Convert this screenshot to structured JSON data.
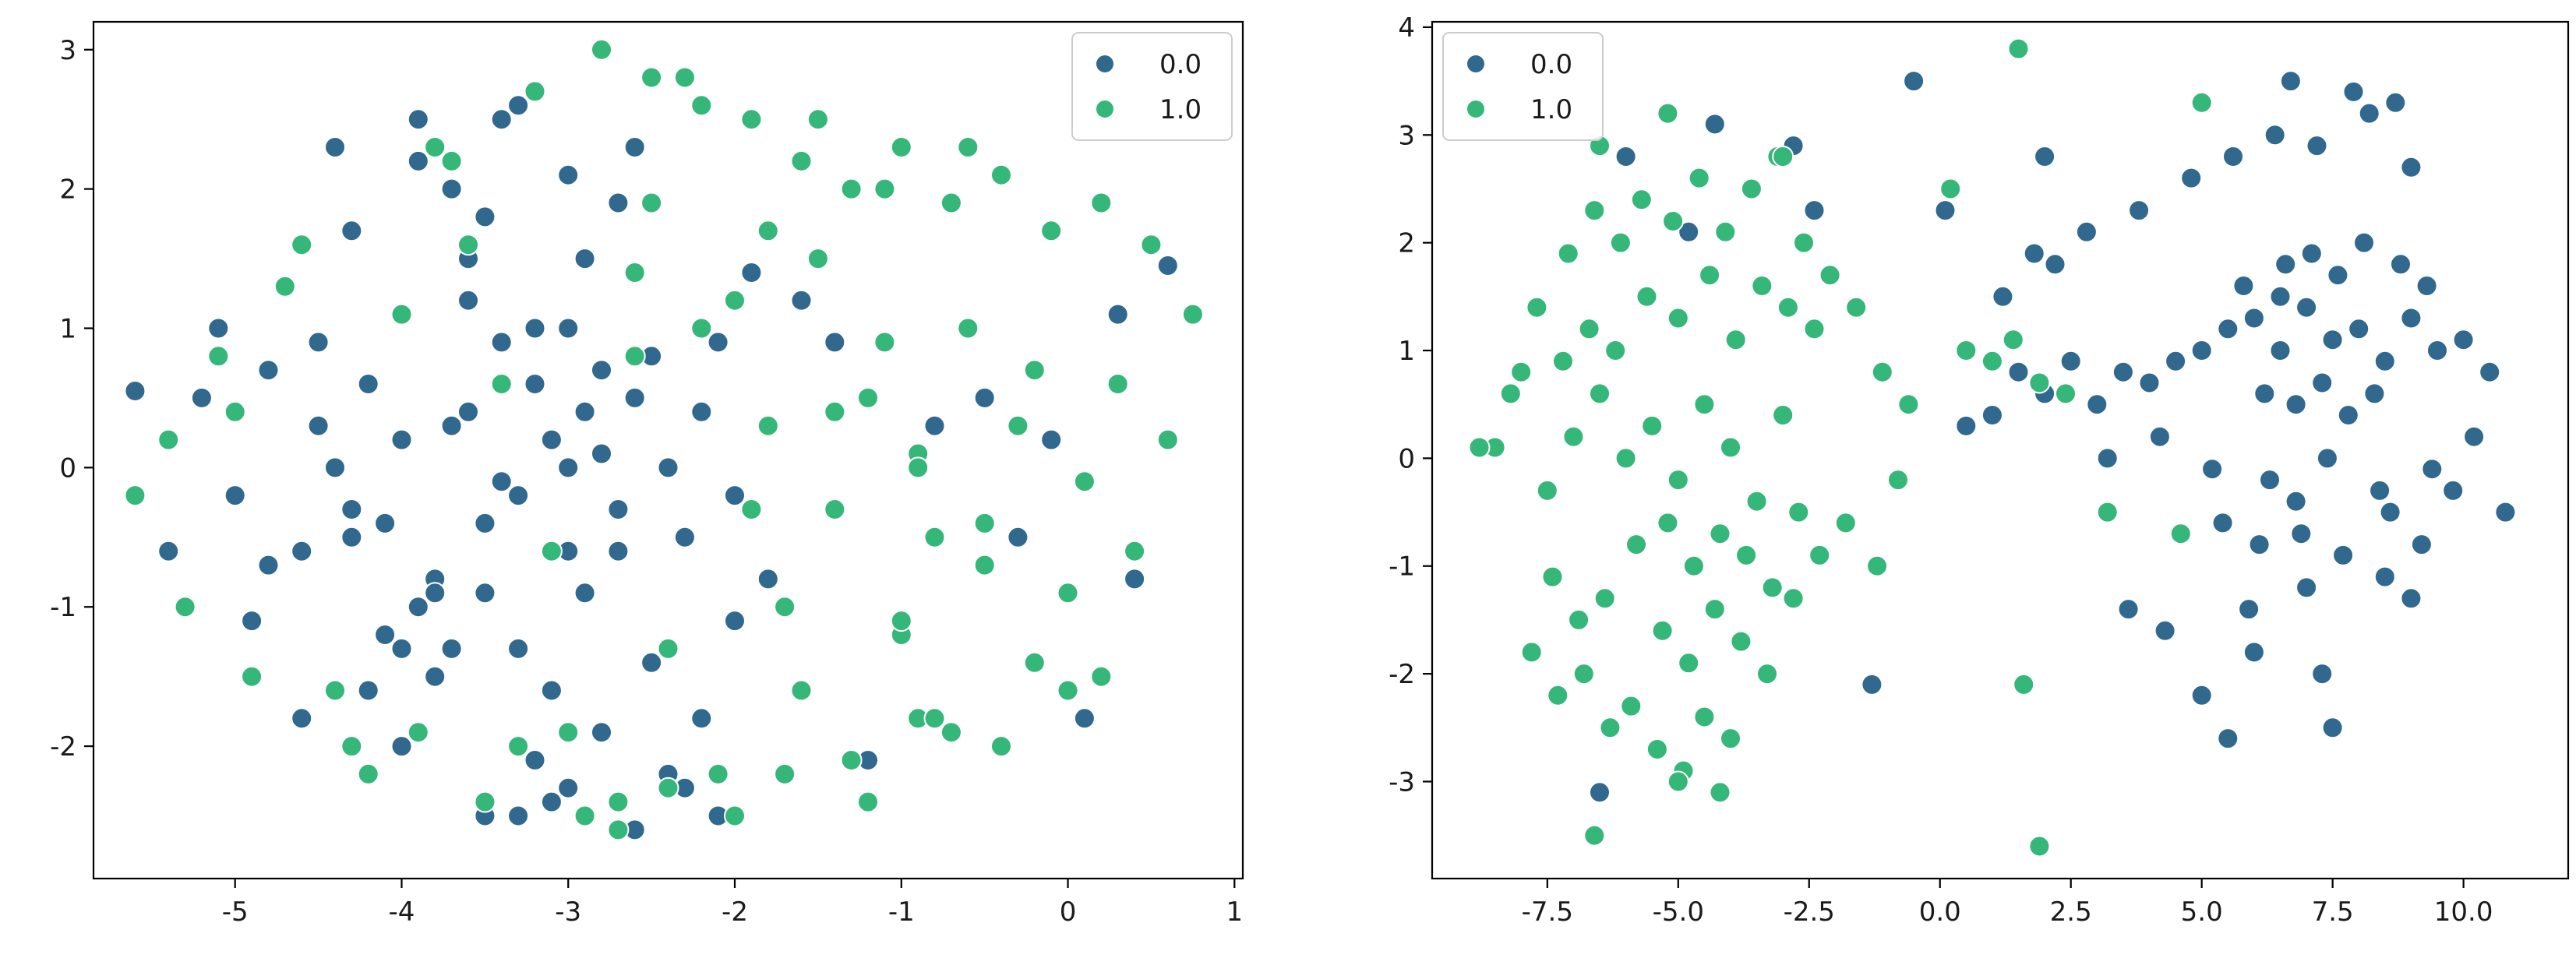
{
  "chart_data": [
    {
      "type": "scatter",
      "title": "",
      "xlabel": "",
      "ylabel": "",
      "xlim": [
        -5.85,
        1.05
      ],
      "ylim": [
        -2.95,
        3.2
      ],
      "xticks": [
        "-5",
        "-4",
        "-3",
        "-2",
        "-1",
        "0",
        "1"
      ],
      "xtick_values": [
        -5,
        -4,
        -3,
        -2,
        -1,
        0,
        1
      ],
      "yticks": [
        "-2",
        "-1",
        "0",
        "1",
        "2",
        "3"
      ],
      "ytick_values": [
        -2,
        -1,
        0,
        1,
        2,
        3
      ],
      "grid": false,
      "legend_position": "top-right",
      "series": [
        {
          "name": "0.0",
          "color": "#31688e",
          "x": [
            -3.1,
            -3.0,
            -2.9,
            -3.3,
            -2.8,
            -3.2,
            -3.5,
            -2.6,
            -3.7,
            -2.4,
            -3.0,
            -3.4,
            -2.7,
            -3.8,
            -2.5,
            -3.6,
            -4.0,
            -2.3,
            -3.9,
            -4.2,
            -2.2,
            -3.3,
            -2.9,
            -3.1,
            -4.4,
            -3.5,
            -2.8,
            -4.1,
            -3.0,
            -2.1,
            -3.7,
            -4.3,
            -3.2,
            -2.6,
            -4.5,
            -3.8,
            -2.0,
            -3.4,
            -4.6,
            -2.4,
            -3.6,
            -4.8,
            -3.9,
            -2.7,
            -5.0,
            -4.0,
            -3.3,
            -1.8,
            -4.7,
            -3.1,
            -5.2,
            -2.5,
            -4.9,
            -1.6,
            -3.5,
            -5.4,
            -2.2,
            -4.4,
            -3.0,
            -1.4,
            -5.6,
            -4.2,
            -3.7,
            -2.9,
            -1.9,
            -4.6,
            -3.2,
            -2.3,
            -5.1,
            -3.9,
            -4.1,
            -3.4,
            -2.8,
            -4.3,
            -3.6,
            -0.3,
            0.1,
            0.6,
            -0.8,
            -1.2,
            0.4,
            -0.1,
            -0.5,
            0.3,
            -4.0,
            -4.5,
            -3.5,
            -2.6,
            -2.0,
            -2.1,
            -3.8,
            -3.3,
            -4.8,
            -4.3,
            -3.0,
            -2.7
          ],
          "y": [
            0.2,
            0.0,
            0.4,
            -0.2,
            0.1,
            0.6,
            -0.4,
            0.5,
            0.3,
            0.0,
            -0.6,
            0.9,
            -0.3,
            -0.8,
            0.8,
            1.2,
            0.2,
            -0.5,
            -1.0,
            0.6,
            0.4,
            -1.3,
            1.5,
            -1.6,
            0.0,
            1.8,
            -1.9,
            -1.2,
            2.1,
            0.9,
            2.0,
            -0.5,
            -2.1,
            2.3,
            0.9,
            -1.5,
            -0.2,
            2.5,
            -0.6,
            -2.2,
            1.5,
            0.7,
            2.2,
            1.9,
            -0.2,
            -2.0,
            2.6,
            -0.8,
            1.3,
            -2.4,
            0.5,
            -1.4,
            -1.1,
            1.2,
            -2.5,
            -0.6,
            -1.8,
            2.3,
            1.0,
            0.9,
            0.55,
            -1.6,
            -1.3,
            -0.9,
            1.4,
            -1.8,
            1.0,
            -2.3,
            1.0,
            2.5,
            -0.4,
            -0.1,
            0.7,
            1.7,
            0.4,
            -0.5,
            -1.8,
            1.45,
            0.3,
            -2.1,
            -0.8,
            0.2,
            0.5,
            1.1,
            -1.3,
            0.3,
            -0.9,
            -2.6,
            -1.1,
            -2.5,
            -0.9,
            -2.5,
            -0.7,
            -0.3,
            -2.3,
            -0.6
          ]
        },
        {
          "name": "1.0",
          "color": "#35b779",
          "x": [
            -2.8,
            -2.5,
            -2.2,
            -1.9,
            -1.6,
            -1.3,
            -1.0,
            -0.7,
            -0.4,
            -0.1,
            0.2,
            0.5,
            0.75,
            -2.0,
            -1.5,
            -1.1,
            -0.6,
            -0.2,
            0.3,
            -2.6,
            -1.8,
            -1.2,
            -0.9,
            -0.3,
            0.1,
            0.6,
            -1.4,
            -0.8,
            -0.5,
            0.0,
            0.4,
            -1.7,
            -1.0,
            -0.2,
            -2.4,
            -1.6,
            -0.9,
            -0.4,
            0.2,
            -3.0,
            -2.1,
            -1.3,
            -0.7,
            0.0,
            -2.7,
            -3.5,
            -4.2,
            -4.9,
            -5.3,
            -5.6,
            -5.1,
            -4.6,
            -3.8,
            -3.2,
            -2.3,
            -1.5,
            -0.6,
            -4.4,
            -3.9,
            -3.3,
            -2.9,
            -2.7,
            -2.4,
            -2.0,
            -1.7,
            -1.2,
            -0.8,
            -3.6,
            -4.0,
            -4.7,
            -5.0,
            -3.4,
            -2.6,
            -2.2,
            -1.4,
            -0.9,
            -0.5,
            -3.1,
            -1.9,
            -1.0,
            -4.3,
            -5.4,
            -3.7,
            -2.5,
            -1.8,
            -1.1
          ],
          "y": [
            3.0,
            2.8,
            2.6,
            2.5,
            2.2,
            2.0,
            2.3,
            1.9,
            2.1,
            1.7,
            1.9,
            1.6,
            1.1,
            1.2,
            1.5,
            0.9,
            1.0,
            0.7,
            0.6,
            0.8,
            0.3,
            0.5,
            0.1,
            0.3,
            -0.1,
            0.2,
            -0.3,
            -0.5,
            -0.7,
            -0.9,
            -0.6,
            -1.0,
            -1.2,
            -1.4,
            -1.3,
            -1.6,
            -1.8,
            -2.0,
            -1.5,
            -1.9,
            -2.2,
            -2.1,
            -1.9,
            -1.6,
            -2.4,
            -2.4,
            -2.2,
            -1.5,
            -1.0,
            -0.2,
            0.8,
            1.6,
            2.3,
            2.7,
            2.8,
            2.5,
            2.3,
            -1.6,
            -1.9,
            -2.0,
            -2.5,
            -2.6,
            -2.3,
            -2.5,
            -2.2,
            -2.4,
            -1.8,
            1.6,
            1.1,
            1.3,
            0.4,
            0.6,
            1.4,
            1.0,
            0.4,
            0.0,
            -0.4,
            -0.6,
            -0.3,
            -1.1,
            -2.0,
            0.2,
            2.2,
            1.9,
            1.7,
            2.0
          ]
        }
      ]
    },
    {
      "type": "scatter",
      "title": "",
      "xlabel": "",
      "ylabel": "",
      "xlim": [
        -9.7,
        12.0
      ],
      "ylim": [
        -3.9,
        4.05
      ],
      "xticks": [
        "-7.5",
        "-5.0",
        "-2.5",
        "0.0",
        "2.5",
        "5.0",
        "7.5",
        "10.0"
      ],
      "xtick_values": [
        -7.5,
        -5.0,
        -2.5,
        0.0,
        2.5,
        5.0,
        7.5,
        10.0
      ],
      "yticks": [
        "-3",
        "-2",
        "-1",
        "0",
        "1",
        "2",
        "3",
        "4"
      ],
      "ytick_values": [
        -3,
        -2,
        -1,
        0,
        1,
        2,
        3,
        4
      ],
      "grid": false,
      "legend_position": "top-left",
      "series": [
        {
          "name": "0.0",
          "color": "#31688e",
          "x": [
            5.5,
            6.0,
            6.5,
            7.0,
            7.5,
            8.0,
            8.5,
            9.0,
            9.5,
            10.0,
            10.5,
            6.2,
            6.8,
            7.3,
            7.8,
            8.3,
            5.8,
            6.6,
            7.1,
            7.6,
            8.1,
            8.8,
            9.3,
            4.5,
            5.0,
            4.0,
            3.5,
            3.0,
            2.5,
            2.0,
            1.5,
            1.0,
            0.5,
            3.2,
            4.2,
            5.2,
            6.3,
            7.4,
            8.4,
            9.4,
            10.2,
            10.8,
            5.4,
            6.1,
            6.9,
            7.7,
            8.6,
            9.2,
            9.8,
            4.8,
            5.6,
            6.4,
            7.2,
            8.2,
            9.0,
            3.8,
            2.8,
            2.2,
            1.8,
            1.2,
            6.7,
            7.9,
            8.7,
            5.9,
            7.0,
            8.5,
            6.0,
            7.3,
            5.0,
            4.3,
            7.5,
            9.0,
            5.5,
            6.8,
            -0.5,
            -4.3,
            -6.0,
            -2.8,
            -2.4,
            -4.8,
            2.0,
            -6.5,
            -1.3,
            0.1,
            3.6,
            6.5
          ],
          "y": [
            1.2,
            1.3,
            1.0,
            1.4,
            1.1,
            1.2,
            0.9,
            1.3,
            1.0,
            1.1,
            0.8,
            0.6,
            0.5,
            0.7,
            0.4,
            0.6,
            1.6,
            1.8,
            1.9,
            1.7,
            2.0,
            1.8,
            1.6,
            0.9,
            1.0,
            0.7,
            0.8,
            0.5,
            0.9,
            0.6,
            0.8,
            0.4,
            0.3,
            0.0,
            0.2,
            -0.1,
            -0.2,
            0.0,
            -0.3,
            -0.1,
            0.2,
            -0.5,
            -0.6,
            -0.8,
            -0.7,
            -0.9,
            -0.5,
            -0.8,
            -0.3,
            2.6,
            2.8,
            3.0,
            2.9,
            3.2,
            2.7,
            2.3,
            2.1,
            1.8,
            1.9,
            1.5,
            3.5,
            3.4,
            3.3,
            -1.4,
            -1.2,
            -1.1,
            -1.8,
            -2.0,
            -2.2,
            -1.6,
            -2.5,
            -1.3,
            -2.6,
            -0.4,
            3.5,
            3.1,
            2.8,
            2.9,
            2.3,
            2.1,
            2.8,
            -3.1,
            -2.1,
            2.3,
            -1.4,
            1.5
          ]
        },
        {
          "name": "1.0",
          "color": "#35b779",
          "x": [
            -6.0,
            -5.5,
            -5.0,
            -4.5,
            -4.0,
            -3.5,
            -3.0,
            -6.5,
            -7.0,
            -7.5,
            -8.0,
            -8.5,
            -5.8,
            -5.2,
            -4.7,
            -4.2,
            -3.7,
            -3.2,
            -2.7,
            -6.2,
            -6.7,
            -7.2,
            -7.7,
            -8.2,
            -5.6,
            -5.0,
            -4.4,
            -3.9,
            -3.4,
            -2.9,
            -2.4,
            -6.4,
            -6.9,
            -7.4,
            -5.3,
            -4.8,
            -4.3,
            -3.8,
            -3.3,
            -2.8,
            -2.3,
            -1.8,
            -6.1,
            -6.6,
            -7.1,
            -5.7,
            -5.1,
            -4.6,
            -4.1,
            -3.6,
            -3.1,
            -2.6,
            -2.1,
            -1.6,
            -1.1,
            -0.6,
            -5.9,
            -6.3,
            -6.8,
            -7.3,
            -7.8,
            -5.4,
            -4.9,
            -4.5,
            -4.0,
            -6.5,
            -5.2,
            -5.0,
            -4.2,
            -3.0,
            1.0,
            1.4,
            1.9,
            0.5,
            2.4,
            3.2,
            4.6,
            1.6,
            1.5,
            -0.8,
            -1.2,
            -8.8,
            -6.6,
            1.9,
            5.0,
            0.2
          ],
          "y": [
            0.0,
            0.3,
            -0.2,
            0.5,
            0.1,
            -0.4,
            0.4,
            0.6,
            0.2,
            -0.3,
            0.8,
            0.1,
            -0.8,
            -0.6,
            -1.0,
            -0.7,
            -0.9,
            -1.2,
            -0.5,
            1.0,
            1.2,
            0.9,
            1.4,
            0.6,
            1.5,
            1.3,
            1.7,
            1.1,
            1.6,
            1.4,
            1.2,
            -1.3,
            -1.5,
            -1.1,
            -1.6,
            -1.9,
            -1.4,
            -1.7,
            -2.0,
            -1.3,
            -0.9,
            -0.6,
            2.0,
            2.3,
            1.9,
            2.4,
            2.2,
            2.6,
            2.1,
            2.5,
            2.8,
            2.0,
            1.7,
            1.4,
            0.8,
            0.5,
            -2.3,
            -2.5,
            -2.0,
            -2.2,
            -1.8,
            -2.7,
            -2.9,
            -2.4,
            -2.6,
            2.9,
            3.2,
            -3.0,
            -3.1,
            2.8,
            0.9,
            1.1,
            0.7,
            1.0,
            0.6,
            -0.5,
            -0.7,
            -2.1,
            3.8,
            -0.2,
            -1.0,
            0.1,
            -3.5,
            -3.6,
            3.3,
            2.5
          ]
        }
      ]
    }
  ]
}
